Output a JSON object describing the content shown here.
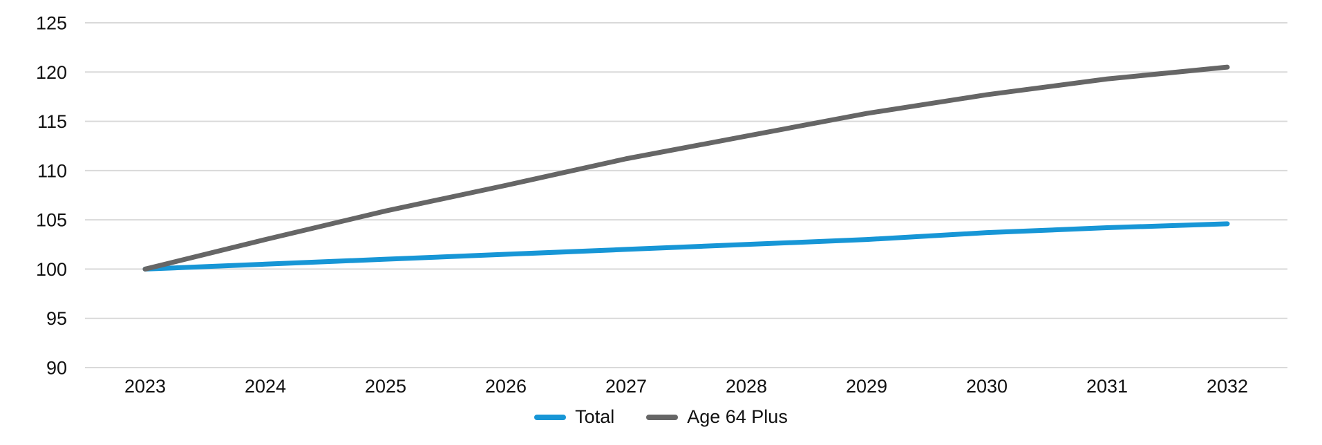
{
  "chart_data": {
    "type": "line",
    "title": "",
    "xlabel": "",
    "ylabel": "",
    "categories": [
      "2023",
      "2024",
      "2025",
      "2026",
      "2027",
      "2028",
      "2029",
      "2030",
      "2031",
      "2032"
    ],
    "series": [
      {
        "name": "Total",
        "color": "#1796d6",
        "values": [
          100,
          100.5,
          101.0,
          101.5,
          102.0,
          102.5,
          103.0,
          103.7,
          104.2,
          104.6
        ]
      },
      {
        "name": "Age 64 Plus",
        "color": "#666666",
        "values": [
          100,
          103.0,
          105.9,
          108.5,
          111.2,
          113.5,
          115.8,
          117.7,
          119.3,
          120.5
        ]
      }
    ],
    "ylim": [
      90,
      125
    ],
    "yticks": [
      90,
      95,
      100,
      105,
      110,
      115,
      120,
      125
    ],
    "grid": "horizontal",
    "gridline_color": "#d9d9d9",
    "text_color": "#111111",
    "legend_position": "bottom-center",
    "line_width": 7
  }
}
